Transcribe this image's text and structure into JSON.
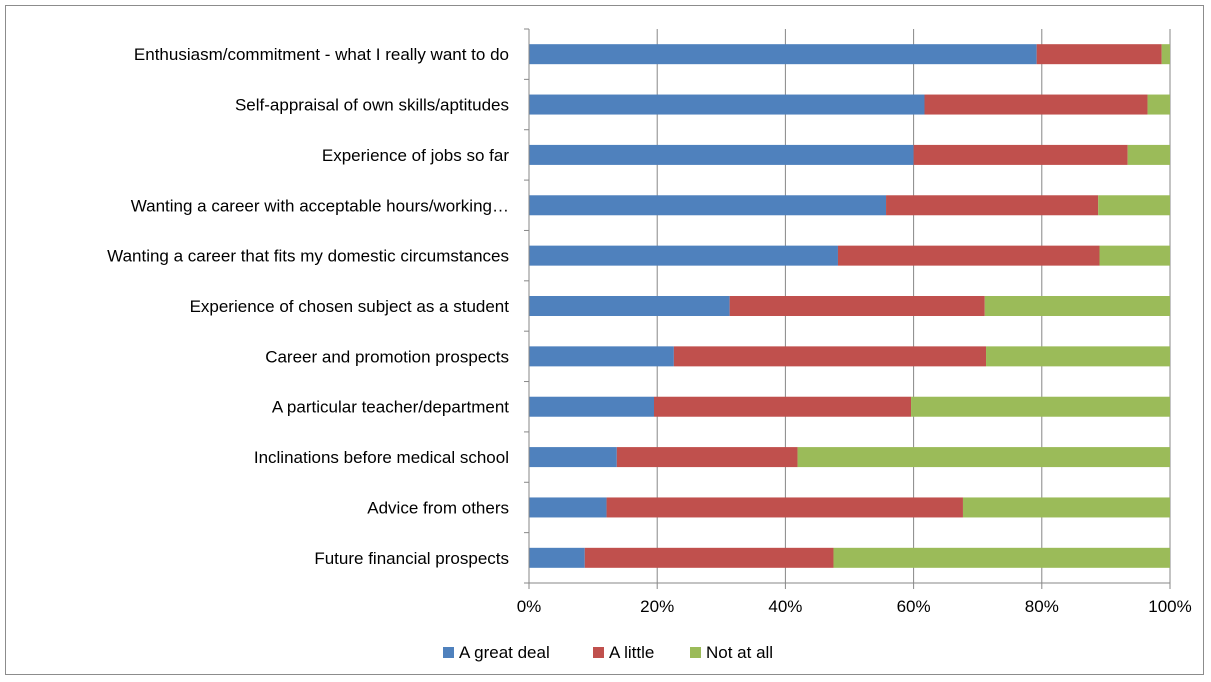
{
  "chart_data": {
    "type": "bar",
    "orientation": "horizontal",
    "stacked": "percent",
    "categories": [
      "Enthusiasm/commitment - what I really want to do",
      "Self-appraisal of own skills/aptitudes",
      "Experience of jobs so far",
      "Wanting a career with acceptable hours/working…",
      "Wanting a career that fits my domestic circumstances",
      "Experience of chosen subject as a student",
      "Career and promotion prospects",
      "A particular teacher/department",
      "Inclinations before medical school",
      "Advice from others",
      "Future financial prospects"
    ],
    "series": [
      {
        "name": "A great deal",
        "color": "#4f81bd",
        "values": [
          79.2,
          61.7,
          60.0,
          55.7,
          48.2,
          31.3,
          22.6,
          19.5,
          13.7,
          12.1,
          8.7
        ]
      },
      {
        "name": "A little",
        "color": "#c0504d",
        "values": [
          19.5,
          34.8,
          33.4,
          33.1,
          40.8,
          39.8,
          48.7,
          40.1,
          28.2,
          55.6,
          38.8
        ]
      },
      {
        "name": "Not at all",
        "color": "#9bbb59",
        "values": [
          1.3,
          3.5,
          6.6,
          11.2,
          11.0,
          28.9,
          28.7,
          40.4,
          58.1,
          32.3,
          52.5
        ]
      }
    ],
    "xlim": [
      0,
      100
    ],
    "xticks": [
      "0%",
      "20%",
      "40%",
      "60%",
      "80%",
      "100%"
    ],
    "grid": "vertical",
    "legend": "bottom",
    "title": "",
    "xlabel": "",
    "ylabel": ""
  }
}
